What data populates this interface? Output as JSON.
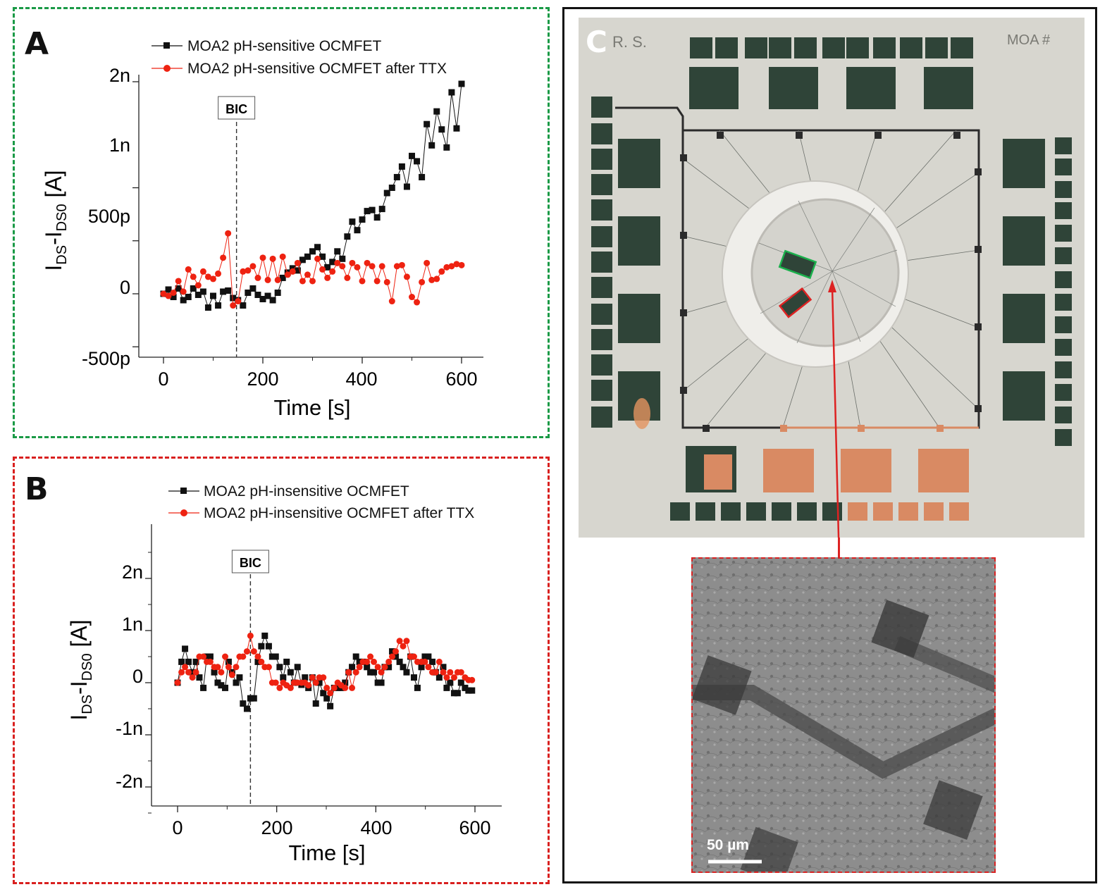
{
  "panel_a": {
    "label": "A",
    "legend": [
      {
        "name": "MOA2 pH-sensitive OCMFET",
        "color": "#111111"
      },
      {
        "name": "MOA2 pH-sensitive OCMFET after TTX",
        "color": "#ee2211"
      }
    ],
    "annotation": "BIC",
    "xlabel": "Time [s]",
    "ylabel_main": "I",
    "ylabel_sub1": "DS",
    "ylabel_dash": "-I",
    "ylabel_sub2": "DS0",
    "ylabel_unit": " [A]",
    "xticks": [
      "0",
      "200",
      "400",
      "600"
    ],
    "yticks": [
      "-500p",
      "0",
      "500p",
      "1n",
      "2n"
    ]
  },
  "panel_b": {
    "label": "B",
    "legend": [
      {
        "name": "MOA2 pH-insensitive OCMFET",
        "color": "#111111"
      },
      {
        "name": "MOA2 pH-insensitive OCMFET after TTX",
        "color": "#ee2211"
      }
    ],
    "annotation": "BIC",
    "xlabel": "Time [s]",
    "ylabel_main": "I",
    "ylabel_sub1": "DS",
    "ylabel_dash": "-I",
    "ylabel_sub2": "DS0",
    "ylabel_unit": " [A]",
    "xticks": [
      "0",
      "200",
      "400",
      "600"
    ],
    "yticks": [
      "-2n",
      "-1n",
      "0",
      "1n",
      "2n"
    ]
  },
  "panel_c": {
    "label": "C",
    "board_corner_text": "R. S.",
    "board_id_text": "MOA #",
    "scale_bar": "50 µm"
  },
  "chart_data": [
    {
      "type": "line",
      "xlabel": "Time [s]",
      "ylabel": "IDS-IDS0 [A]",
      "xlim": [
        -20,
        660
      ],
      "ylim": [
        -5e-10,
        2e-09
      ],
      "annotations": [
        {
          "text": "BIC",
          "x": 147
        }
      ],
      "series": [
        {
          "name": "MOA2 pH-sensitive OCMFET",
          "color": "#111111",
          "marker": "square",
          "x": [
            0,
            10,
            20,
            30,
            40,
            50,
            60,
            70,
            80,
            90,
            100,
            110,
            120,
            130,
            140,
            150,
            160,
            170,
            180,
            190,
            200,
            210,
            220,
            230,
            240,
            250,
            260,
            270,
            280,
            290,
            300,
            310,
            320,
            330,
            340,
            350,
            360,
            370,
            380,
            390,
            400,
            410,
            420,
            430,
            440,
            450,
            460,
            470,
            480,
            490,
            500,
            510,
            520,
            530,
            540,
            550,
            560,
            570,
            580,
            590,
            600
          ],
          "y": [
            0,
            4e-11,
            -3e-11,
            5e-11,
            -6e-11,
            -3e-11,
            5e-11,
            -1e-11,
            2e-11,
            -1.3e-10,
            -2e-11,
            -1.1e-10,
            2e-11,
            3e-11,
            -4e-11,
            -6e-11,
            -1.1e-10,
            1e-11,
            5e-11,
            -1e-11,
            -5e-11,
            -2e-11,
            -6e-11,
            1e-11,
            1.5e-10,
            2e-10,
            2.4e-10,
            2.2e-10,
            3.2e-10,
            3.5e-10,
            4e-10,
            4.4e-10,
            3.5e-10,
            2.5e-10,
            3e-10,
            4e-10,
            3.3e-10,
            5.4e-10,
            6.8e-10,
            6e-10,
            7e-10,
            7.8e-10,
            7.9e-10,
            7.2e-10,
            8e-10,
            9.5e-10,
            1e-09,
            1.1e-09,
            1.2e-09,
            1.01e-09,
            1.3e-09,
            1.25e-09,
            1.1e-09,
            1.6e-09,
            1.4e-09,
            1.72e-09,
            1.55e-09,
            1.38e-09,
            1.9e-09,
            1.56e-09,
            1.98e-09
          ]
        },
        {
          "name": "MOA2 pH-sensitive OCMFET after TTX",
          "color": "#ee2211",
          "marker": "circle",
          "x": [
            0,
            10,
            20,
            30,
            40,
            50,
            60,
            70,
            80,
            90,
            100,
            110,
            120,
            130,
            140,
            150,
            160,
            170,
            180,
            190,
            200,
            210,
            220,
            230,
            240,
            250,
            260,
            270,
            280,
            290,
            300,
            310,
            320,
            330,
            340,
            350,
            360,
            370,
            380,
            390,
            400,
            410,
            420,
            430,
            440,
            450,
            460,
            470,
            480,
            490,
            500,
            510,
            520,
            530,
            540,
            550,
            560,
            570,
            580,
            590,
            600
          ],
          "y": [
            0,
            -2e-11,
            1e-11,
            1.2e-10,
            2e-11,
            2.3e-10,
            1.6e-10,
            8e-11,
            2.1e-10,
            1.6e-10,
            1.4e-10,
            1.9e-10,
            3.4e-10,
            5.7e-10,
            -1.1e-10,
            -7e-11,
            2.1e-10,
            2.2e-10,
            2.6e-10,
            1.5e-10,
            3.4e-10,
            1.3e-10,
            3.3e-10,
            1.3e-10,
            3.5e-10,
            1.8e-10,
            2.1e-10,
            2.9e-10,
            1.2e-10,
            1.8e-10,
            1.2e-10,
            3.3e-10,
            2.3e-10,
            1.5e-10,
            2.1e-10,
            2.9e-10,
            2.6e-10,
            1.5e-10,
            2.9e-10,
            2.5e-10,
            1.2e-10,
            2.9e-10,
            2.6e-10,
            1.2e-10,
            2.6e-10,
            1.1e-10,
            -7e-11,
            2.6e-10,
            2.7e-10,
            1.6e-10,
            -3e-11,
            -8e-11,
            1.1e-10,
            2.9e-10,
            1.3e-10,
            1.4e-10,
            2.1e-10,
            2.5e-10,
            2.6e-10,
            2.8e-10,
            2.7e-10
          ]
        }
      ]
    },
    {
      "type": "line",
      "xlabel": "Time [s]",
      "ylabel": "IDS-IDS0 [A]",
      "xlim": [
        -50,
        690
      ],
      "ylim": [
        -2.5e-09,
        2.9e-09
      ],
      "annotations": [
        {
          "text": "BIC",
          "x": 147
        }
      ],
      "series": [
        {
          "name": "MOA2 pH-insensitive OCMFET",
          "color": "#111111",
          "marker": "square",
          "x": [
            0,
            8,
            15,
            22,
            30,
            37,
            44,
            52,
            59,
            66,
            74,
            81,
            88,
            96,
            103,
            110,
            118,
            125,
            132,
            140,
            147,
            154,
            162,
            169,
            176,
            184,
            191,
            198,
            206,
            213,
            220,
            228,
            235,
            242,
            250,
            257,
            264,
            272,
            279,
            286,
            294,
            301,
            308,
            316,
            323,
            330,
            338,
            345,
            352,
            360,
            367,
            374,
            382,
            389,
            396,
            404,
            411,
            418,
            426,
            433,
            440,
            448,
            455,
            462,
            470,
            477,
            484,
            492,
            499,
            506,
            514,
            521,
            528,
            536,
            543,
            550,
            558,
            565,
            572,
            580,
            587,
            594
          ],
          "y": [
            0,
            4e-10,
            6.5e-10,
            4e-10,
            2e-10,
            4e-10,
            1e-10,
            -1e-10,
            5e-10,
            5e-10,
            2e-10,
            0,
            -5e-11,
            -1e-10,
            4e-10,
            2e-10,
            0,
            1e-10,
            -4e-10,
            -5e-10,
            -3e-10,
            -3e-10,
            4e-10,
            7e-10,
            9e-10,
            7e-10,
            5e-10,
            5e-10,
            3e-10,
            1e-10,
            4e-10,
            2e-10,
            0,
            3e-10,
            -4e-11,
            1e-10,
            -1e-10,
            1e-10,
            -4e-10,
            0,
            -2e-10,
            -3e-10,
            -4.5e-10,
            -1e-10,
            -1e-10,
            -1e-10,
            0,
            2e-10,
            3e-10,
            5e-10,
            4e-10,
            4e-10,
            3e-10,
            2e-10,
            2e-10,
            0,
            0,
            3e-10,
            3e-10,
            6e-10,
            5e-10,
            4e-10,
            3e-10,
            2e-10,
            5e-10,
            1e-10,
            -1e-10,
            3e-10,
            5e-10,
            5e-10,
            4e-10,
            2e-10,
            1e-10,
            3e-10,
            -1e-10,
            0,
            -2e-10,
            -2e-10,
            0,
            -1e-10,
            -1.5e-10,
            -1.5e-10
          ]
        },
        {
          "name": "MOA2 pH-insensitive OCMFET after TTX",
          "color": "#ee2211",
          "marker": "circle",
          "x": [
            0,
            8,
            15,
            22,
            30,
            37,
            44,
            52,
            59,
            66,
            74,
            81,
            88,
            96,
            103,
            110,
            118,
            125,
            132,
            140,
            147,
            154,
            162,
            169,
            176,
            184,
            191,
            198,
            206,
            213,
            220,
            228,
            235,
            242,
            250,
            257,
            264,
            272,
            279,
            286,
            294,
            301,
            308,
            316,
            323,
            330,
            338,
            345,
            352,
            360,
            367,
            374,
            382,
            389,
            396,
            404,
            411,
            418,
            426,
            433,
            440,
            448,
            455,
            462,
            470,
            477,
            484,
            492,
            499,
            506,
            514,
            521,
            528,
            536,
            543,
            550,
            558,
            565,
            572,
            580,
            587,
            594
          ],
          "y": [
            0,
            2e-10,
            3e-10,
            2e-10,
            1e-10,
            2e-10,
            5e-10,
            5e-10,
            4e-10,
            4e-10,
            3e-10,
            3e-10,
            2e-10,
            5e-10,
            3e-10,
            1.5e-10,
            3e-10,
            5e-10,
            5e-10,
            6e-10,
            9e-10,
            6e-10,
            5e-10,
            4e-10,
            3e-10,
            3e-10,
            0,
            0,
            -1e-10,
            0,
            -5e-11,
            -1e-10,
            0,
            0,
            0,
            0,
            -5e-11,
            1e-10,
            0,
            1e-10,
            1e-10,
            -1e-10,
            -2e-10,
            -1e-10,
            0,
            -5e-11,
            -1e-10,
            2e-10,
            -1e-10,
            2e-10,
            3e-10,
            4e-10,
            4e-10,
            5e-10,
            4e-10,
            3e-10,
            2e-10,
            3e-10,
            4e-10,
            5e-10,
            6e-10,
            8e-10,
            7e-10,
            8e-10,
            5e-10,
            5e-10,
            4e-10,
            4e-10,
            4e-10,
            3e-10,
            2e-10,
            2e-10,
            4e-10,
            2e-10,
            1e-10,
            2e-10,
            1e-10,
            2e-10,
            2e-10,
            1e-10,
            5e-11,
            5e-11
          ]
        }
      ]
    }
  ]
}
